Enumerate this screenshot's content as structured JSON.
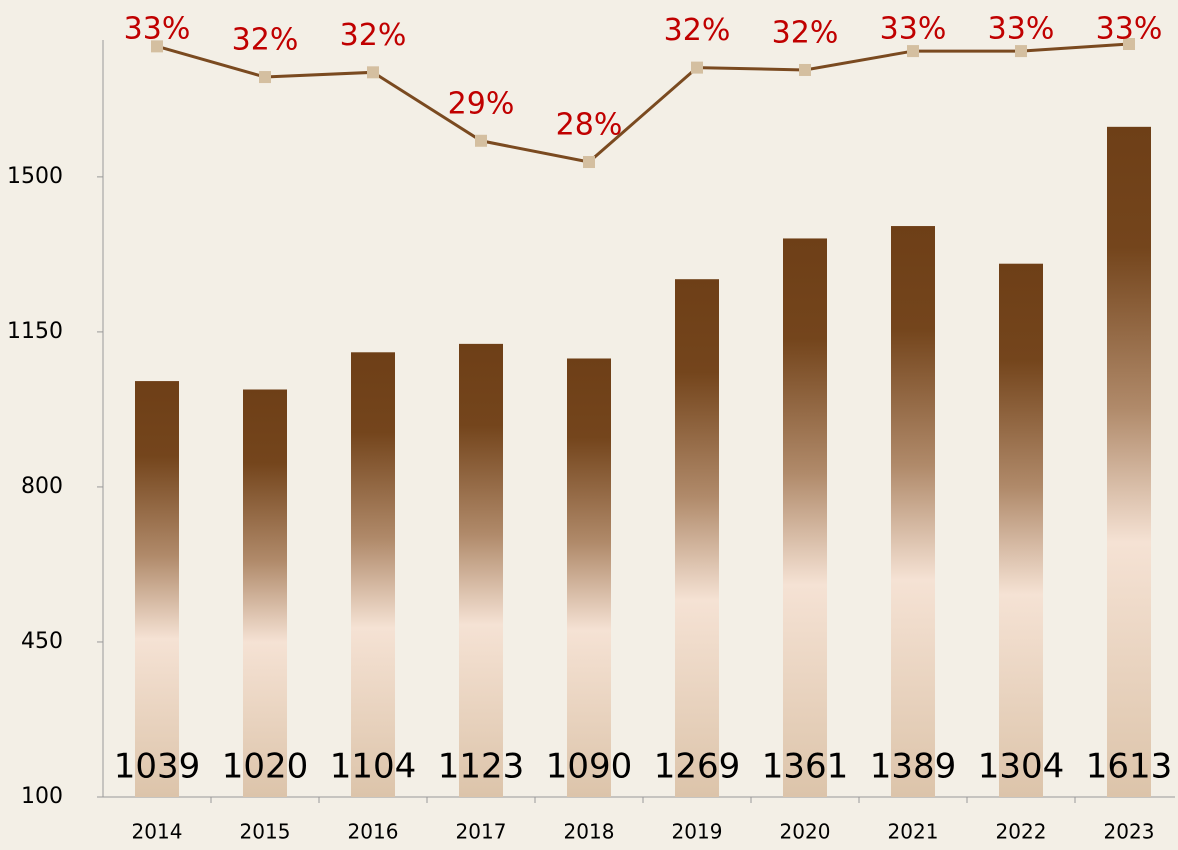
{
  "chart_data": {
    "type": "bar_line",
    "categories": [
      "2014",
      "2015",
      "2016",
      "2017",
      "2018",
      "2019",
      "2020",
      "2021",
      "2022",
      "2023"
    ],
    "series": [
      {
        "type": "bar",
        "color": "#6e3f17",
        "values": [
          1039,
          1020,
          1104,
          1123,
          1090,
          1269,
          1361,
          1389,
          1304,
          1613
        ]
      },
      {
        "type": "line",
        "axis": "y2",
        "color": "#7a4a20",
        "values": [
          33.3,
          32.0,
          32.2,
          29.3,
          28.4,
          32.4,
          32.3,
          33.1,
          33.1,
          33.4
        ],
        "value_labels": [
          "33%",
          "32%",
          "32%",
          "29%",
          "28%",
          "32%",
          "32%",
          "33%",
          "33%",
          "33%"
        ]
      }
    ],
    "ylim": [
      100,
      1800
    ],
    "yticks": [
      100,
      450,
      800,
      1150,
      1500
    ],
    "y2lim": [
      1.5,
      33.4
    ]
  }
}
